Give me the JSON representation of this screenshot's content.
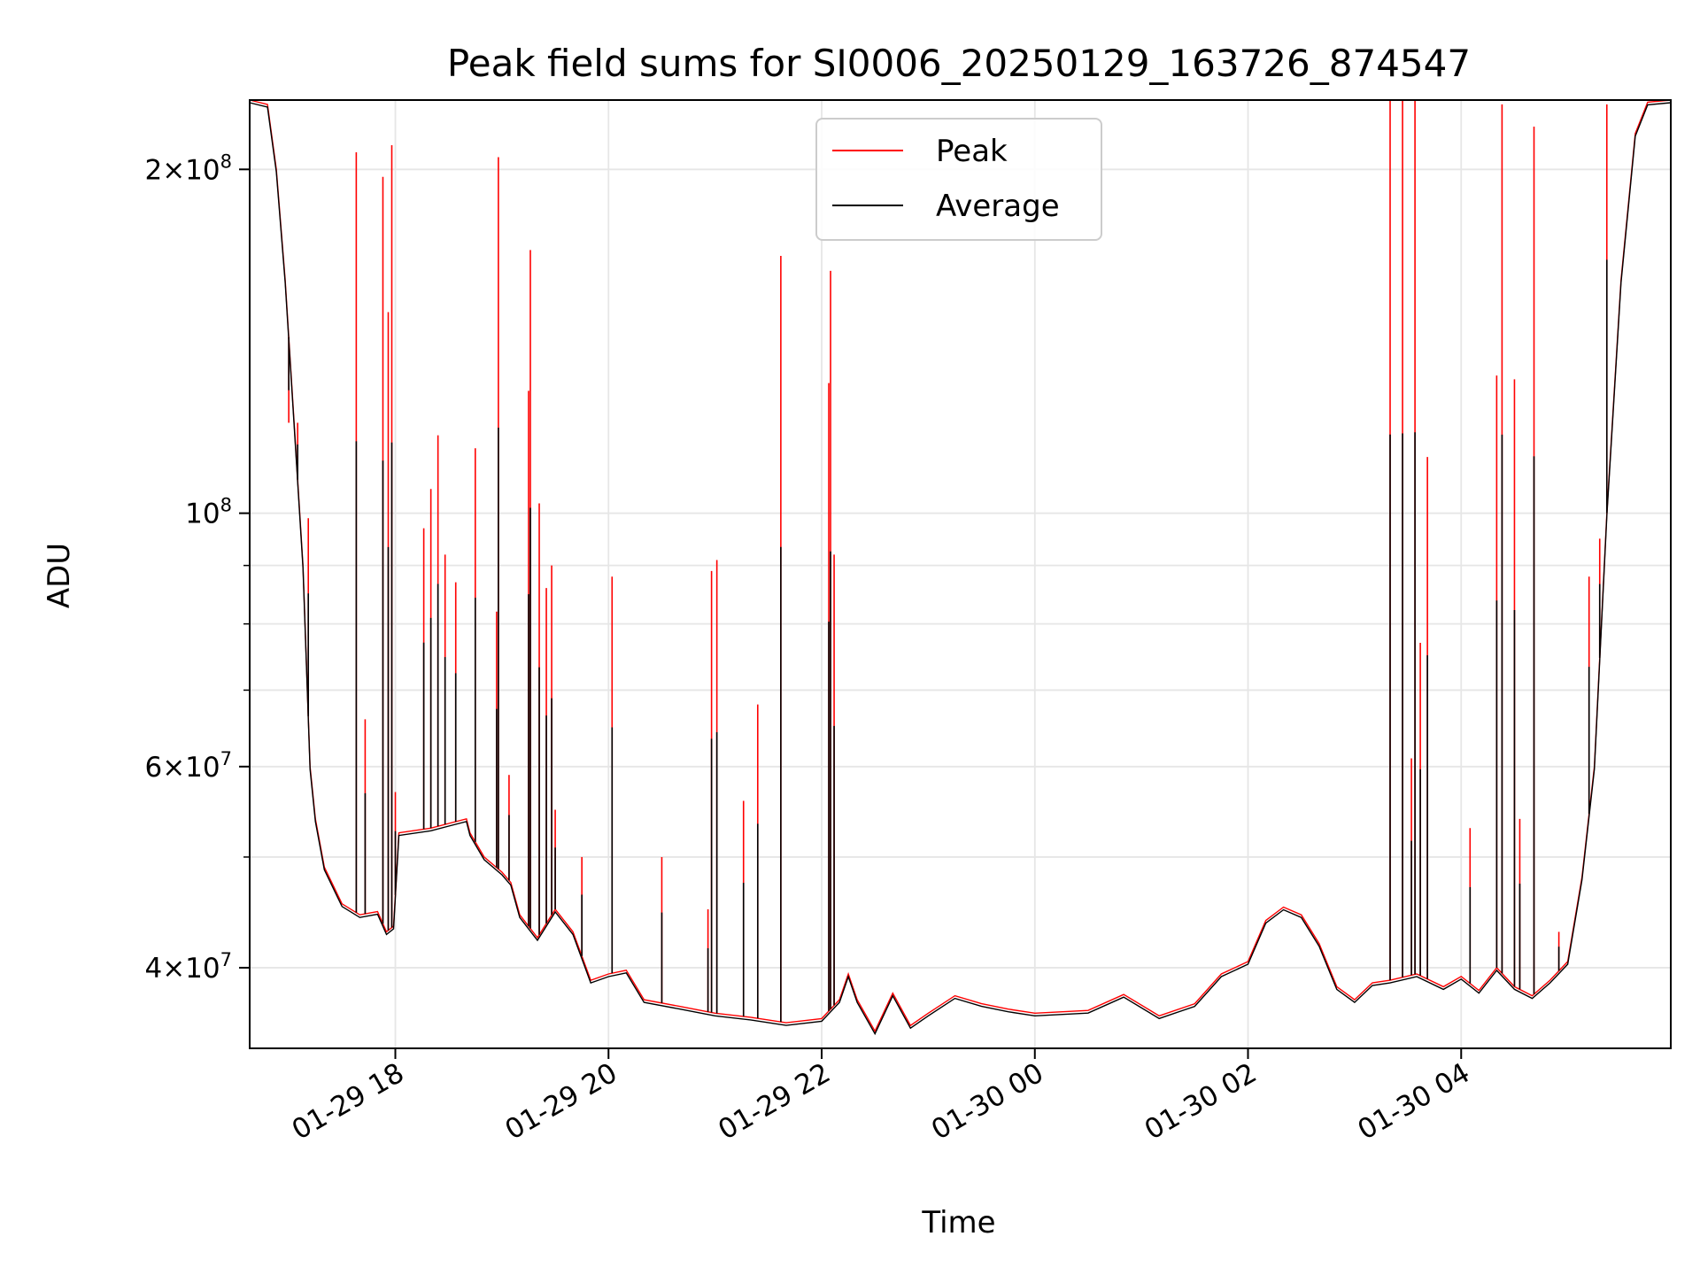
{
  "chart_data": {
    "type": "line",
    "title": "Peak field sums for SI0006_20250129_163726_874547",
    "xlabel": "Time",
    "ylabel": "ADU",
    "y_scale": "log",
    "ylim": [
      34000000,
      230000000
    ],
    "xlim": [
      "2025-01-29 16:38",
      "2025-01-30 05:58"
    ],
    "x_ticks": [
      {
        "x": "2025-01-29 18:00",
        "label": "01-29 18"
      },
      {
        "x": "2025-01-29 20:00",
        "label": "01-29 20"
      },
      {
        "x": "2025-01-29 22:00",
        "label": "01-29 22"
      },
      {
        "x": "2025-01-30 00:00",
        "label": "01-30 00"
      },
      {
        "x": "2025-01-30 02:00",
        "label": "01-30 02"
      },
      {
        "x": "2025-01-30 04:00",
        "label": "01-30 04"
      }
    ],
    "y_major_ticks": [
      {
        "y": 40000000,
        "base": "4",
        "exp": "7"
      },
      {
        "y": 60000000,
        "base": "6",
        "exp": "7"
      },
      {
        "y": 100000000,
        "base": "",
        "exp": "8"
      },
      {
        "y": 200000000,
        "base": "2",
        "exp": "8"
      }
    ],
    "y_minor_ticks": [
      50000000,
      70000000,
      80000000,
      90000000
    ],
    "grid": true,
    "legend_position": "upper center",
    "series": [
      {
        "name": "Peak",
        "color": "#ff0000",
        "points": [
          [
            "2025-01-29 16:38",
            230000000
          ],
          [
            "2025-01-29 16:48",
            228000000
          ],
          [
            "2025-01-29 16:53",
            200000000
          ],
          [
            "2025-01-29 16:58",
            160000000
          ],
          [
            "2025-01-29 17:03",
            120000000
          ],
          [
            "2025-01-29 17:08",
            90000000
          ],
          [
            "2025-01-29 17:12",
            60000000
          ],
          [
            "2025-01-29 17:15",
            54000000
          ],
          [
            "2025-01-29 17:20",
            49000000
          ],
          [
            "2025-01-29 17:30",
            45500000
          ],
          [
            "2025-01-29 17:40",
            44500000
          ],
          [
            "2025-01-29 17:50",
            44800000
          ],
          [
            "2025-01-29 17:55",
            43000000
          ],
          [
            "2025-01-29 17:59",
            43500000
          ],
          [
            "2025-01-29 18:02",
            52500000
          ],
          [
            "2025-01-29 18:20",
            53000000
          ],
          [
            "2025-01-29 18:40",
            54000000
          ],
          [
            "2025-01-29 18:42",
            52500000
          ],
          [
            "2025-01-29 18:50",
            50000000
          ],
          [
            "2025-01-29 19:00",
            48500000
          ],
          [
            "2025-01-29 19:05",
            47500000
          ],
          [
            "2025-01-29 19:10",
            44500000
          ],
          [
            "2025-01-29 19:20",
            42500000
          ],
          [
            "2025-01-29 19:30",
            45000000
          ],
          [
            "2025-01-29 19:40",
            43000000
          ],
          [
            "2025-01-29 19:50",
            39000000
          ],
          [
            "2025-01-29 20:00",
            39500000
          ],
          [
            "2025-01-29 20:10",
            39800000
          ],
          [
            "2025-01-29 20:20",
            37500000
          ],
          [
            "2025-01-29 20:40",
            37000000
          ],
          [
            "2025-01-29 21:00",
            36500000
          ],
          [
            "2025-01-29 21:20",
            36200000
          ],
          [
            "2025-01-29 21:40",
            35800000
          ],
          [
            "2025-01-29 22:00",
            36100000
          ],
          [
            "2025-01-29 22:10",
            37500000
          ],
          [
            "2025-01-29 22:15",
            39500000
          ],
          [
            "2025-01-29 22:20",
            37500000
          ],
          [
            "2025-01-29 22:30",
            35200000
          ],
          [
            "2025-01-29 22:40",
            38000000
          ],
          [
            "2025-01-29 22:50",
            35600000
          ],
          [
            "2025-01-29 23:00",
            36500000
          ],
          [
            "2025-01-29 23:15",
            37800000
          ],
          [
            "2025-01-29 23:30",
            37200000
          ],
          [
            "2025-01-29 23:45",
            36800000
          ],
          [
            "2025-01-30 00:00",
            36500000
          ],
          [
            "2025-01-30 00:30",
            36700000
          ],
          [
            "2025-01-30 00:50",
            37900000
          ],
          [
            "2025-01-30 01:10",
            36300000
          ],
          [
            "2025-01-30 01:30",
            37200000
          ],
          [
            "2025-01-30 01:45",
            39500000
          ],
          [
            "2025-01-30 02:00",
            40500000
          ],
          [
            "2025-01-30 02:10",
            44000000
          ],
          [
            "2025-01-30 02:20",
            45200000
          ],
          [
            "2025-01-30 02:30",
            44500000
          ],
          [
            "2025-01-30 02:40",
            42000000
          ],
          [
            "2025-01-30 02:50",
            38500000
          ],
          [
            "2025-01-30 03:00",
            37500000
          ],
          [
            "2025-01-30 03:10",
            38800000
          ],
          [
            "2025-01-30 03:20",
            39000000
          ],
          [
            "2025-01-30 03:35",
            39500000
          ],
          [
            "2025-01-30 03:50",
            38500000
          ],
          [
            "2025-01-30 04:00",
            39300000
          ],
          [
            "2025-01-30 04:10",
            38200000
          ],
          [
            "2025-01-30 04:20",
            40000000
          ],
          [
            "2025-01-30 04:30",
            38500000
          ],
          [
            "2025-01-30 04:40",
            37800000
          ],
          [
            "2025-01-30 04:50",
            39000000
          ],
          [
            "2025-01-30 05:00",
            40500000
          ],
          [
            "2025-01-30 05:08",
            48000000
          ],
          [
            "2025-01-30 05:15",
            60000000
          ],
          [
            "2025-01-30 05:22",
            100000000
          ],
          [
            "2025-01-30 05:30",
            160000000
          ],
          [
            "2025-01-30 05:38",
            215000000
          ],
          [
            "2025-01-30 05:45",
            229000000
          ],
          [
            "2025-01-30 05:58",
            230000000
          ]
        ],
        "spikes": [
          [
            "2025-01-29 17:00",
            120000000
          ],
          [
            "2025-01-29 17:05",
            120000000
          ],
          [
            "2025-01-29 17:11",
            99000000
          ],
          [
            "2025-01-29 17:38",
            207000000
          ],
          [
            "2025-01-29 17:43",
            66000000
          ],
          [
            "2025-01-29 17:53",
            197000000
          ],
          [
            "2025-01-29 17:56",
            150000000
          ],
          [
            "2025-01-29 17:58",
            210000000
          ],
          [
            "2025-01-29 18:00",
            57000000
          ],
          [
            "2025-01-29 18:16",
            97000000
          ],
          [
            "2025-01-29 18:20",
            105000000
          ],
          [
            "2025-01-29 18:24",
            117000000
          ],
          [
            "2025-01-29 18:28",
            92000000
          ],
          [
            "2025-01-29 18:34",
            87000000
          ],
          [
            "2025-01-29 18:45",
            114000000
          ],
          [
            "2025-01-29 18:57",
            82000000
          ],
          [
            "2025-01-29 18:58",
            205000000
          ],
          [
            "2025-01-29 19:04",
            59000000
          ],
          [
            "2025-01-29 19:15",
            128000000
          ],
          [
            "2025-01-29 19:16",
            170000000
          ],
          [
            "2025-01-29 19:21",
            102000000
          ],
          [
            "2025-01-29 19:25",
            86000000
          ],
          [
            "2025-01-29 19:28",
            90000000
          ],
          [
            "2025-01-29 19:30",
            55000000
          ],
          [
            "2025-01-29 19:45",
            50000000
          ],
          [
            "2025-01-29 20:02",
            88000000
          ],
          [
            "2025-01-29 20:30",
            50000000
          ],
          [
            "2025-01-29 20:56",
            45000000
          ],
          [
            "2025-01-29 20:58",
            89000000
          ],
          [
            "2025-01-29 21:01",
            91000000
          ],
          [
            "2025-01-29 21:16",
            56000000
          ],
          [
            "2025-01-29 21:24",
            68000000
          ],
          [
            "2025-01-29 21:37",
            168000000
          ],
          [
            "2025-01-29 22:04",
            130000000
          ],
          [
            "2025-01-29 22:05",
            163000000
          ],
          [
            "2025-01-29 22:07",
            92000000
          ],
          [
            "2025-01-30 03:20",
            230000000
          ],
          [
            "2025-01-30 03:27",
            230000000
          ],
          [
            "2025-01-30 03:32",
            61000000
          ],
          [
            "2025-01-30 03:34",
            230000000
          ],
          [
            "2025-01-30 03:37",
            77000000
          ],
          [
            "2025-01-30 03:41",
            112000000
          ],
          [
            "2025-01-30 04:05",
            53000000
          ],
          [
            "2025-01-30 04:20",
            132000000
          ],
          [
            "2025-01-30 04:23",
            228000000
          ],
          [
            "2025-01-30 04:30",
            131000000
          ],
          [
            "2025-01-30 04:33",
            54000000
          ],
          [
            "2025-01-30 04:41",
            218000000
          ],
          [
            "2025-01-30 04:55",
            43000000
          ],
          [
            "2025-01-30 05:12",
            88000000
          ],
          [
            "2025-01-30 05:18",
            95000000
          ],
          [
            "2025-01-30 05:22",
            228000000
          ]
        ]
      },
      {
        "name": "Average",
        "color": "#000000"
      }
    ]
  }
}
